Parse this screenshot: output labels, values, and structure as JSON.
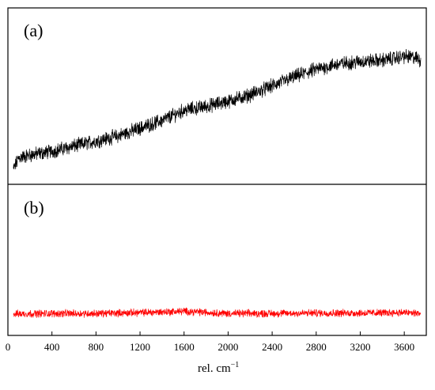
{
  "chart_data": {
    "type": "line",
    "xlabel": "rel. cm",
    "xlabel_superscript": "−1",
    "xlim": [
      0,
      3800
    ],
    "xticks": [
      0,
      400,
      800,
      1200,
      1600,
      2000,
      2400,
      2800,
      3200,
      3600
    ],
    "grid": false,
    "legend": "none",
    "panels": [
      {
        "label": "(a)",
        "color": "#000000",
        "ylim": [
          0,
          1
        ],
        "noise": 0.045,
        "x": [
          50,
          100,
          200,
          400,
          600,
          800,
          1000,
          1200,
          1400,
          1600,
          1800,
          2000,
          2200,
          2400,
          2600,
          2800,
          3000,
          3200,
          3400,
          3600,
          3700,
          3750
        ],
        "y": [
          0.05,
          0.14,
          0.16,
          0.19,
          0.23,
          0.27,
          0.31,
          0.37,
          0.43,
          0.51,
          0.54,
          0.58,
          0.63,
          0.7,
          0.77,
          0.83,
          0.87,
          0.89,
          0.9,
          0.93,
          0.92,
          0.9
        ]
      },
      {
        "label": "(b)",
        "color": "#ff0000",
        "ylim": [
          0,
          1
        ],
        "noise": 0.07,
        "x": [
          50,
          400,
          800,
          1200,
          1600,
          2000,
          2400,
          2800,
          3200,
          3600,
          3750
        ],
        "y": [
          0.24,
          0.25,
          0.25,
          0.27,
          0.3,
          0.25,
          0.25,
          0.26,
          0.26,
          0.27,
          0.25
        ]
      }
    ]
  }
}
